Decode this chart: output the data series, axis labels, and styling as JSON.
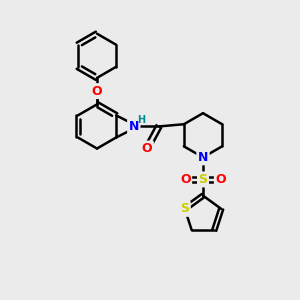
{
  "background_color": "#ebebeb",
  "bond_color": "#000000",
  "bond_width": 1.8,
  "atom_colors": {
    "O": "#ff0000",
    "N": "#0000ff",
    "S_sulfonyl": "#cccc00",
    "S_thiophene": "#cccc00",
    "H": "#008b8b",
    "C": "#000000"
  },
  "figsize": [
    3.0,
    3.0
  ],
  "dpi": 100,
  "xlim": [
    0,
    10
  ],
  "ylim": [
    0,
    10
  ]
}
